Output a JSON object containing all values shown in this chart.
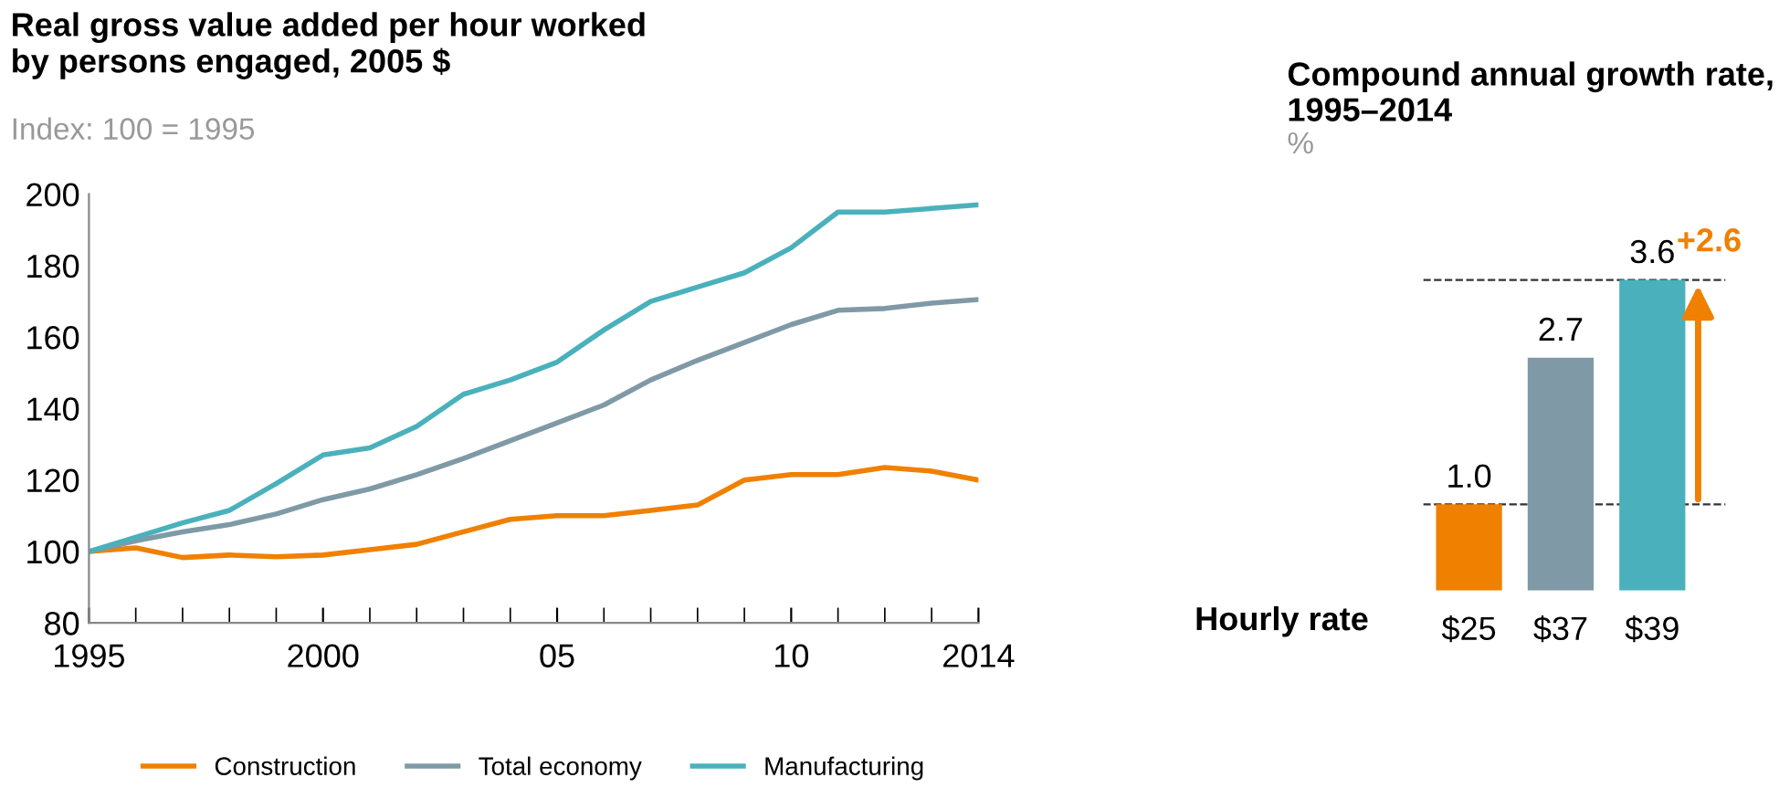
{
  "chart_data": [
    {
      "type": "line",
      "title": "Real gross value added per hour worked\nby persons engaged, 2005 $",
      "subtitle": "Index: 100 = 1995",
      "x": [
        1995,
        1996,
        1997,
        1998,
        1999,
        2000,
        2001,
        2002,
        2003,
        2004,
        2005,
        2006,
        2007,
        2008,
        2009,
        2010,
        2011,
        2012,
        2013,
        2014
      ],
      "series": [
        {
          "name": "Construction",
          "color": "#f08000",
          "values": [
            100,
            101,
            98.3,
            99,
            98.5,
            99,
            100.5,
            102,
            105.5,
            109,
            110,
            110,
            111.5,
            113,
            120,
            121.5,
            121.5,
            123.5,
            122.5,
            120
          ]
        },
        {
          "name": "Total economy",
          "color": "#7f9aa6",
          "values": [
            100,
            103,
            105.5,
            107.5,
            110.5,
            114.5,
            117.5,
            121.5,
            126,
            131,
            136,
            141,
            148,
            153.5,
            158.5,
            163.5,
            167.5,
            168,
            169.5,
            170.5
          ]
        },
        {
          "name": "Manufacturing",
          "color": "#4ab1bc",
          "values": [
            100,
            104,
            108,
            111.5,
            119,
            127,
            129,
            135,
            144,
            148,
            153,
            162,
            170,
            174,
            178,
            185,
            195,
            195,
            196,
            197
          ]
        }
      ],
      "xlim": [
        1995,
        2014
      ],
      "xticks": [
        1995,
        2000,
        {
          "value": 2005,
          "label": "05"
        },
        {
          "value": 2010,
          "label": "10"
        },
        2014
      ],
      "ylim": [
        80,
        200
      ],
      "yticks": [
        80,
        100,
        120,
        140,
        160,
        180,
        200
      ],
      "grid": false,
      "legend": "bottom",
      "marker": "none",
      "line_style": "solid"
    },
    {
      "type": "bar",
      "title": "Compound annual growth rate,\n1995–2014",
      "subtitle": "%",
      "categories": [
        "$25",
        "$37",
        "$39"
      ],
      "values": [
        1.0,
        2.7,
        3.6
      ],
      "colors": [
        "#f08000",
        "#7f9aa6",
        "#4ab1bc"
      ],
      "value_labels": [
        "1.0",
        "2.7",
        "3.6"
      ],
      "xlabel": "Hourly rate",
      "ref_lines": [
        {
          "axis": "y",
          "value": 1.0,
          "color": "#333333",
          "line_style": "dashed"
        },
        {
          "axis": "y",
          "value": 3.6,
          "color": "#333333",
          "line_style": "dashed"
        }
      ],
      "annotations": [
        {
          "text": "+2.6",
          "x": "$39",
          "y": 3.6
        }
      ]
    }
  ]
}
